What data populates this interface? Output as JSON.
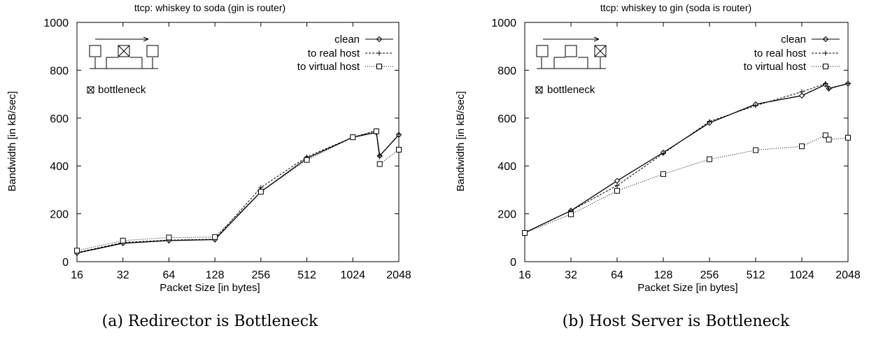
{
  "chart_data": [
    {
      "type": "line",
      "title": "ttcp: whiskey to soda (gin is router)",
      "xlabel": "Packet Size [in bytes]",
      "ylabel": "Bandwidth [in kB/sec]",
      "x_scale": "log2",
      "x_ticks": [
        "16",
        "32",
        "64",
        "128",
        "256",
        "512",
        "1024",
        "2048"
      ],
      "y_ticks": [
        "0",
        "200",
        "400",
        "600",
        "800",
        "1000"
      ],
      "xlim": [
        16,
        2048
      ],
      "ylim": [
        0,
        1000
      ],
      "grid": false,
      "legend_position": "top-right",
      "inset_label": "bottleneck",
      "bottleneck_box": 2,
      "caption": "(a) Redirector is Bottleneck",
      "series": [
        {
          "name": "clean",
          "marker": "diamond",
          "dash": "solid",
          "x": [
            16,
            32,
            64,
            128,
            256,
            512,
            1024,
            1460,
            1536,
            2048
          ],
          "y": [
            36,
            77,
            88,
            92,
            292,
            432,
            520,
            540,
            442,
            530
          ]
        },
        {
          "name": "to real host",
          "marker": "plus",
          "dash": "dashed",
          "x": [
            16,
            32,
            64,
            128,
            256,
            512,
            1024,
            1460,
            1536,
            2048
          ],
          "y": [
            38,
            80,
            90,
            94,
            310,
            438,
            520,
            548,
            442,
            532
          ]
        },
        {
          "name": "to virtual host",
          "marker": "square",
          "dash": "dotted",
          "x": [
            16,
            32,
            64,
            128,
            256,
            512,
            1024,
            1460,
            1536,
            2048
          ],
          "y": [
            46,
            88,
            101,
            103,
            292,
            425,
            520,
            545,
            408,
            468
          ]
        }
      ]
    },
    {
      "type": "line",
      "title": "ttcp: whiskey to gin (soda is router)",
      "xlabel": "Packet Size [in bytes]",
      "ylabel": "Bandwidth [in kB/sec]",
      "x_scale": "log2",
      "x_ticks": [
        "16",
        "32",
        "64",
        "128",
        "256",
        "512",
        "1024",
        "2048"
      ],
      "y_ticks": [
        "0",
        "200",
        "400",
        "600",
        "800",
        "1000"
      ],
      "xlim": [
        16,
        2048
      ],
      "ylim": [
        0,
        1000
      ],
      "grid": false,
      "legend_position": "top-right",
      "inset_label": "bottleneck",
      "bottleneck_box": 3,
      "caption": "(b) Host Server is Bottleneck",
      "series": [
        {
          "name": "clean",
          "marker": "diamond",
          "dash": "solid",
          "x": [
            16,
            32,
            64,
            128,
            256,
            512,
            1024,
            1460,
            1536,
            2048
          ],
          "y": [
            121,
            213,
            338,
            456,
            580,
            658,
            694,
            740,
            724,
            744
          ]
        },
        {
          "name": "to real host",
          "marker": "plus",
          "dash": "dashed",
          "x": [
            16,
            32,
            64,
            128,
            256,
            512,
            1024,
            1460,
            1536,
            2048
          ],
          "y": [
            121,
            213,
            318,
            452,
            586,
            652,
            710,
            744,
            722,
            744
          ]
        },
        {
          "name": "to virtual host",
          "marker": "square",
          "dash": "dotted",
          "x": [
            16,
            32,
            64,
            128,
            256,
            512,
            1024,
            1460,
            1536,
            2048
          ],
          "y": [
            120,
            198,
            296,
            366,
            428,
            466,
            482,
            528,
            510,
            518
          ]
        }
      ]
    }
  ]
}
